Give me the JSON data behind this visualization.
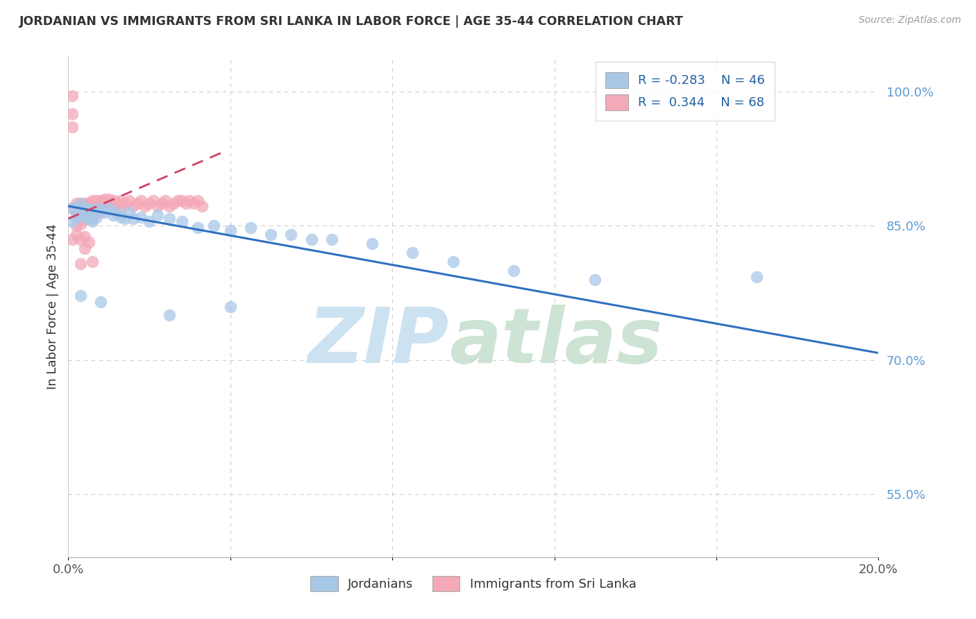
{
  "title": "JORDANIAN VS IMMIGRANTS FROM SRI LANKA IN LABOR FORCE | AGE 35-44 CORRELATION CHART",
  "source": "Source: ZipAtlas.com",
  "ylabel": "In Labor Force | Age 35-44",
  "xlim": [
    0.0,
    0.2
  ],
  "ylim": [
    0.48,
    1.04
  ],
  "yticks": [
    0.55,
    0.7,
    0.85,
    1.0
  ],
  "ytick_labels": [
    "55.0%",
    "70.0%",
    "85.0%",
    "100.0%"
  ],
  "xtick_positions": [
    0.0,
    0.04,
    0.08,
    0.12,
    0.16,
    0.2
  ],
  "xtick_labels": [
    "0.0%",
    "",
    "",
    "",
    "",
    "20.0%"
  ],
  "blue_R": -0.283,
  "blue_N": 46,
  "pink_R": 0.344,
  "pink_N": 68,
  "blue_color": "#a8c8e8",
  "pink_color": "#f4a8b8",
  "blue_line_color": "#3070c0",
  "pink_line_color": "#d04060",
  "legend_label_blue": "Jordanians",
  "legend_label_pink": "Immigrants from Sri Lanka",
  "blue_trend_x": [
    0.0,
    0.2
  ],
  "blue_trend_y": [
    0.872,
    0.708
  ],
  "pink_trend_x": [
    0.0,
    0.038
  ],
  "pink_trend_y": [
    0.858,
    0.932
  ],
  "blue_points_x": [
    0.001,
    0.001,
    0.002,
    0.002,
    0.003,
    0.003,
    0.004,
    0.004,
    0.005,
    0.005,
    0.006,
    0.006,
    0.007,
    0.007,
    0.008,
    0.009,
    0.01,
    0.011,
    0.012,
    0.013,
    0.014,
    0.015,
    0.016,
    0.018,
    0.02,
    0.022,
    0.025,
    0.028,
    0.032,
    0.036,
    0.04,
    0.045,
    0.05,
    0.055,
    0.06,
    0.065,
    0.075,
    0.085,
    0.095,
    0.11,
    0.13,
    0.17,
    0.003,
    0.008,
    0.025,
    0.04
  ],
  "blue_points_y": [
    0.87,
    0.855,
    0.87,
    0.86,
    0.865,
    0.875,
    0.87,
    0.86,
    0.868,
    0.858,
    0.865,
    0.855,
    0.87,
    0.86,
    0.868,
    0.865,
    0.87,
    0.862,
    0.865,
    0.86,
    0.858,
    0.865,
    0.858,
    0.86,
    0.855,
    0.862,
    0.858,
    0.855,
    0.848,
    0.85,
    0.845,
    0.848,
    0.84,
    0.84,
    0.835,
    0.835,
    0.83,
    0.82,
    0.81,
    0.8,
    0.79,
    0.793,
    0.772,
    0.765,
    0.75,
    0.76
  ],
  "pink_points_x": [
    0.001,
    0.001,
    0.001,
    0.001,
    0.002,
    0.002,
    0.002,
    0.002,
    0.002,
    0.003,
    0.003,
    0.003,
    0.003,
    0.003,
    0.004,
    0.004,
    0.004,
    0.004,
    0.005,
    0.005,
    0.005,
    0.005,
    0.006,
    0.006,
    0.006,
    0.006,
    0.007,
    0.007,
    0.007,
    0.008,
    0.008,
    0.008,
    0.009,
    0.009,
    0.01,
    0.01,
    0.011,
    0.012,
    0.013,
    0.013,
    0.014,
    0.015,
    0.016,
    0.017,
    0.018,
    0.019,
    0.02,
    0.021,
    0.022,
    0.023,
    0.024,
    0.025,
    0.026,
    0.027,
    0.028,
    0.029,
    0.03,
    0.031,
    0.032,
    0.033,
    0.001,
    0.002,
    0.003,
    0.004,
    0.004,
    0.005,
    0.003,
    0.006
  ],
  "pink_points_y": [
    0.995,
    0.975,
    0.96,
    0.87,
    0.875,
    0.87,
    0.865,
    0.858,
    0.85,
    0.875,
    0.87,
    0.865,
    0.858,
    0.852,
    0.875,
    0.87,
    0.865,
    0.858,
    0.875,
    0.87,
    0.865,
    0.858,
    0.878,
    0.872,
    0.866,
    0.858,
    0.878,
    0.872,
    0.865,
    0.878,
    0.872,
    0.865,
    0.88,
    0.872,
    0.88,
    0.875,
    0.878,
    0.875,
    0.878,
    0.87,
    0.875,
    0.878,
    0.872,
    0.875,
    0.878,
    0.872,
    0.875,
    0.878,
    0.872,
    0.875,
    0.878,
    0.872,
    0.875,
    0.878,
    0.878,
    0.875,
    0.878,
    0.875,
    0.878,
    0.872,
    0.835,
    0.84,
    0.835,
    0.838,
    0.825,
    0.832,
    0.808,
    0.81
  ],
  "watermark_zip_color": "#c8dff0",
  "watermark_atlas_color": "#c8e0d0"
}
